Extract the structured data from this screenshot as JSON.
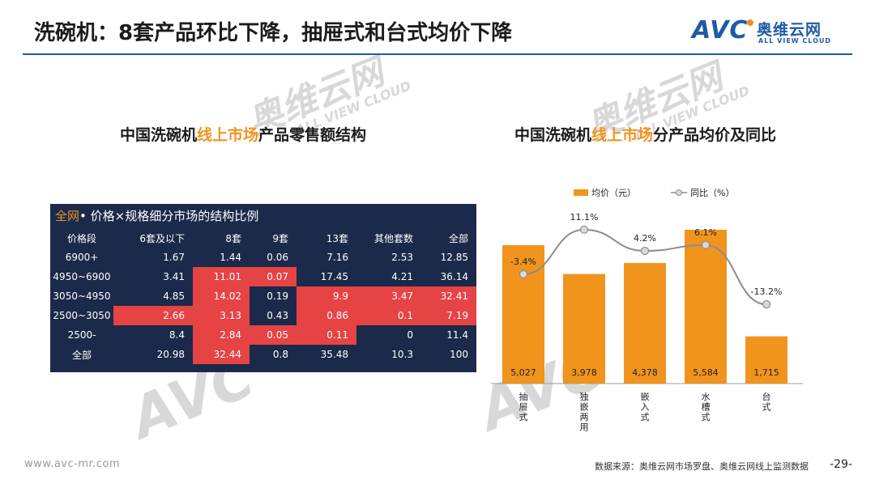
{
  "header": {
    "title": "洗碗机：8套产品环比下降，抽屉式和台式均价下降",
    "logo_text": "AVC",
    "logo_cn": "奥维云网",
    "logo_en": "ALL VIEW CLOUD"
  },
  "watermark": {
    "text_cn": "奥维云网",
    "text_en": "ALL VIEW CLOUD",
    "text_avc": "AVC"
  },
  "left_section": {
    "title_pre": "中国洗碗机",
    "title_hl": "线上市场",
    "title_post": "产品零售额结构"
  },
  "right_section": {
    "title_pre": "中国洗碗机",
    "title_hl": "线上市场",
    "title_post": "分产品均价及同比"
  },
  "chart_data": [
    {
      "type": "table",
      "title_hl": "全网",
      "title": "• 价格×规格细分市场的结构比例",
      "columns": [
        "价格段",
        "6套及以下",
        "8套",
        "9套",
        "13套",
        "其他套数",
        "全部"
      ],
      "rows": [
        [
          "6900+",
          "1.67",
          "1.44",
          "0.06",
          "7.16",
          "2.53",
          "12.85"
        ],
        [
          "4950~6900",
          "3.41",
          "11.01",
          "0.07",
          "17.45",
          "4.21",
          "36.14"
        ],
        [
          "3050~4950",
          "4.85",
          "14.02",
          "0.19",
          "9.9",
          "3.47",
          "32.41"
        ],
        [
          "2500~3050",
          "2.66",
          "3.13",
          "0.43",
          "0.86",
          "0.1",
          "7.19"
        ],
        [
          "2500-",
          "8.4",
          "2.84",
          "0.05",
          "0.11",
          "0",
          "11.4"
        ],
        [
          "全部",
          "20.98",
          "32.44",
          "0.8",
          "35.48",
          "10.3",
          "100"
        ]
      ],
      "highlight": [
        [
          false,
          false,
          false,
          false,
          false,
          false,
          false
        ],
        [
          false,
          false,
          true,
          true,
          false,
          false,
          false
        ],
        [
          false,
          false,
          true,
          false,
          true,
          true,
          true
        ],
        [
          false,
          true,
          true,
          false,
          true,
          true,
          true
        ],
        [
          false,
          false,
          true,
          true,
          true,
          false,
          false
        ],
        [
          false,
          false,
          true,
          false,
          false,
          false,
          false
        ]
      ]
    },
    {
      "type": "bar",
      "categories": [
        "抽屉式",
        "独嵌两用",
        "嵌入式",
        "水槽式",
        "台式"
      ],
      "series": [
        {
          "name": "均价（元）",
          "type": "bar",
          "values": [
            5027,
            3978,
            4378,
            5584,
            1715
          ],
          "labels": [
            "5,027",
            "3,978",
            "4,378",
            "5,584",
            "1,715"
          ],
          "color": "#f0941e"
        },
        {
          "name": "同比（%）",
          "type": "line",
          "values": [
            -3.4,
            11.1,
            4.2,
            6.1,
            -13.2
          ],
          "labels": [
            "-3.4%",
            "11.1%",
            "4.2%",
            "6.1%",
            "-13.2%"
          ],
          "color": "#8c8c8c"
        }
      ],
      "legend_position": "top"
    }
  ],
  "footer": {
    "site": "www.avc-mr.com",
    "source": "数据来源：奥维云网市场罗盘、奥维云网线上监测数据",
    "page": "-29-"
  }
}
